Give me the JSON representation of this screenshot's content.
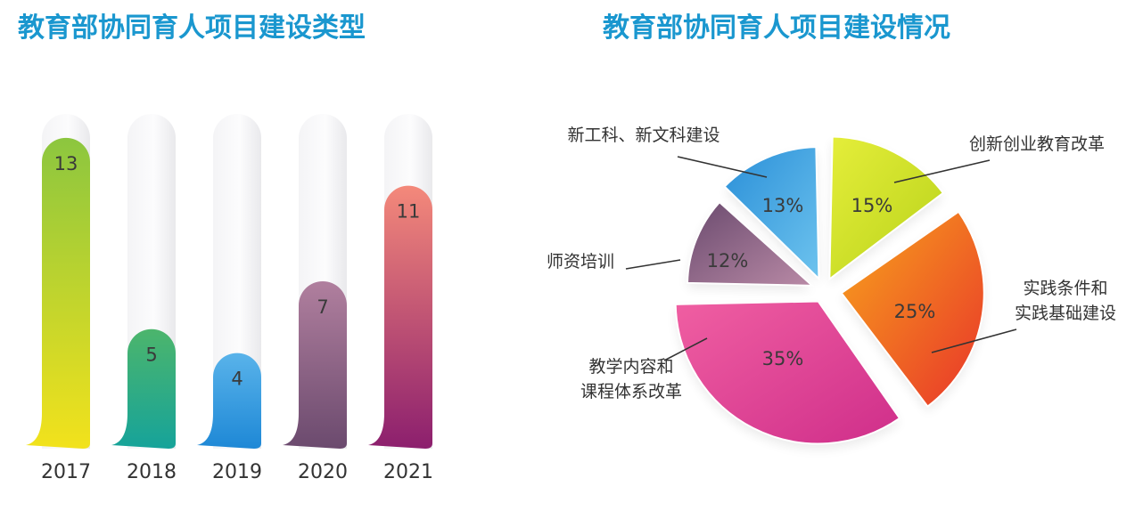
{
  "colors": {
    "title": "#1a97cf"
  },
  "chart_data": [
    {
      "type": "bar",
      "title": "教育部协同育人项目建设类型",
      "categories": [
        "2017",
        "2018",
        "2019",
        "2020",
        "2021"
      ],
      "values": [
        13,
        5,
        4,
        7,
        11
      ],
      "ylim": [
        0,
        14
      ],
      "grid": false,
      "legend": "none",
      "bar_colors": [
        [
          "#f2e21c",
          "#8cc63f"
        ],
        [
          "#16a39a",
          "#4cb56c"
        ],
        [
          "#1e88d6",
          "#59b3ea"
        ],
        [
          "#6b4a6e",
          "#b07f9e"
        ],
        [
          "#8c1f6e",
          "#f4897a"
        ]
      ]
    },
    {
      "type": "pie",
      "title": "教育部协同育人项目建设情况",
      "slices": [
        {
          "label": "创新创业教育改革",
          "value": 15,
          "display": "15%",
          "colors": [
            "#e5ee3a",
            "#b8d21a"
          ]
        },
        {
          "label": "实践条件和\n实践基础建设",
          "value": 25,
          "display": "25%",
          "colors": [
            "#f8a51c",
            "#e8342a"
          ]
        },
        {
          "label": "教学内容和\n课程体系改革",
          "value": 35,
          "display": "35%",
          "colors": [
            "#f05fa2",
            "#cf2e8a"
          ]
        },
        {
          "label": "师资培训",
          "value": 12,
          "display": "12%",
          "colors": [
            "#6a4a6e",
            "#b98aa6"
          ]
        },
        {
          "label": "新工科、新文科建设",
          "value": 13,
          "display": "13%",
          "colors": [
            "#2a8fd8",
            "#6dc3ee"
          ]
        }
      ],
      "legend": "none"
    }
  ]
}
